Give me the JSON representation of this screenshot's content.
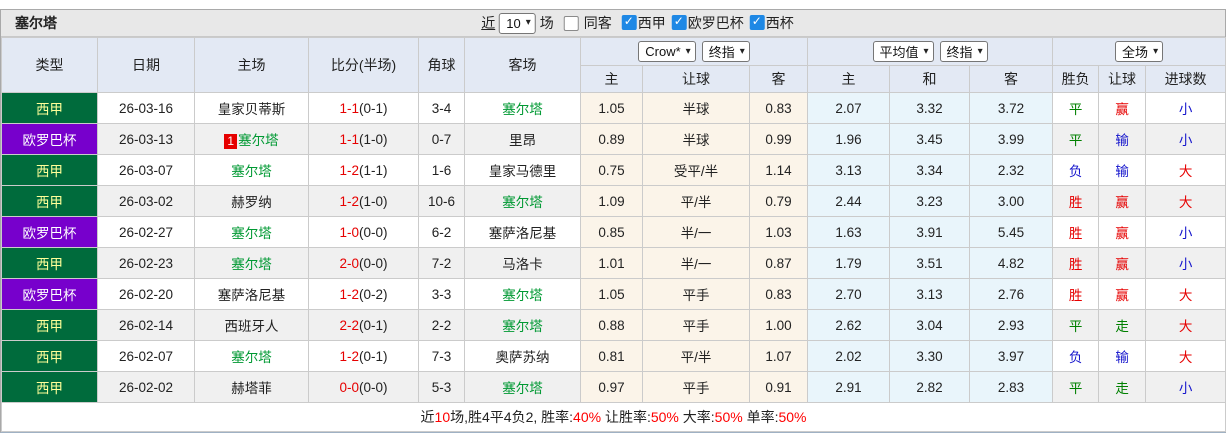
{
  "title": "塞尔塔",
  "controls": {
    "near_label": "近",
    "count_value": "10",
    "matches_label": "场",
    "same_away_label": "同客",
    "leagues": [
      {
        "label": "西甲",
        "checked": true
      },
      {
        "label": "欧罗巴杯",
        "checked": true
      },
      {
        "label": "西杯",
        "checked": true
      }
    ]
  },
  "header": {
    "static_cols": [
      "类型",
      "日期",
      "主场",
      "比分(半场)",
      "角球",
      "客场"
    ],
    "group1_selects": [
      "Crow*",
      "终指"
    ],
    "group2_selects": [
      "平均值",
      "终指"
    ],
    "group3_selects": [
      "全场"
    ],
    "sub_cols": [
      "主",
      "让球",
      "客",
      "主",
      "和",
      "客",
      "胜负",
      "让球",
      "进球数"
    ]
  },
  "league_styles": {
    "西甲": {
      "bg": "#006B3C",
      "fg": "#FFFF99"
    },
    "欧罗巴杯": {
      "bg": "#7700CC",
      "fg": "#FFFFFF"
    }
  },
  "rows": [
    {
      "type": "西甲",
      "date": "26-03-16",
      "home": "皇家贝蒂斯",
      "home_highlight": false,
      "home_rank": "",
      "score_ft": "1-1",
      "score_ht": "(0-1)",
      "corner": "3-4",
      "away": "塞尔塔",
      "away_highlight": true,
      "odds_crow": [
        "1.05",
        "半球",
        "0.83"
      ],
      "odds_avg": [
        "2.07",
        "3.32",
        "3.72"
      ],
      "results": [
        {
          "text": "平",
          "color": "green"
        },
        {
          "text": "赢",
          "color": "red"
        },
        {
          "text": "小",
          "color": "blue"
        }
      ]
    },
    {
      "type": "欧罗巴杯",
      "date": "26-03-13",
      "home": "塞尔塔",
      "home_highlight": true,
      "home_rank": "1",
      "score_ft": "1-1",
      "score_ht": "(1-0)",
      "corner": "0-7",
      "away": "里昂",
      "away_highlight": false,
      "odds_crow": [
        "0.89",
        "半球",
        "0.99"
      ],
      "odds_avg": [
        "1.96",
        "3.45",
        "3.99"
      ],
      "results": [
        {
          "text": "平",
          "color": "green"
        },
        {
          "text": "输",
          "color": "blue"
        },
        {
          "text": "小",
          "color": "blue"
        }
      ]
    },
    {
      "type": "西甲",
      "date": "26-03-07",
      "home": "塞尔塔",
      "home_highlight": true,
      "home_rank": "",
      "score_ft": "1-2",
      "score_ht": "(1-1)",
      "corner": "1-6",
      "away": "皇家马德里",
      "away_highlight": false,
      "odds_crow": [
        "0.75",
        "受平/半",
        "1.14"
      ],
      "odds_avg": [
        "3.13",
        "3.34",
        "2.32"
      ],
      "results": [
        {
          "text": "负",
          "color": "blue"
        },
        {
          "text": "输",
          "color": "blue"
        },
        {
          "text": "大",
          "color": "red"
        }
      ]
    },
    {
      "type": "西甲",
      "date": "26-03-02",
      "home": "赫罗纳",
      "home_highlight": false,
      "home_rank": "",
      "score_ft": "1-2",
      "score_ht": "(1-0)",
      "corner": "10-6",
      "away": "塞尔塔",
      "away_highlight": true,
      "odds_crow": [
        "1.09",
        "平/半",
        "0.79"
      ],
      "odds_avg": [
        "2.44",
        "3.23",
        "3.00"
      ],
      "results": [
        {
          "text": "胜",
          "color": "red"
        },
        {
          "text": "赢",
          "color": "red"
        },
        {
          "text": "大",
          "color": "red"
        }
      ]
    },
    {
      "type": "欧罗巴杯",
      "date": "26-02-27",
      "home": "塞尔塔",
      "home_highlight": true,
      "home_rank": "",
      "score_ft": "1-0",
      "score_ht": "(0-0)",
      "corner": "6-2",
      "away": "塞萨洛尼基",
      "away_highlight": false,
      "odds_crow": [
        "0.85",
        "半/一",
        "1.03"
      ],
      "odds_avg": [
        "1.63",
        "3.91",
        "5.45"
      ],
      "results": [
        {
          "text": "胜",
          "color": "red"
        },
        {
          "text": "赢",
          "color": "red"
        },
        {
          "text": "小",
          "color": "blue"
        }
      ]
    },
    {
      "type": "西甲",
      "date": "26-02-23",
      "home": "塞尔塔",
      "home_highlight": true,
      "home_rank": "",
      "score_ft": "2-0",
      "score_ht": "(0-0)",
      "corner": "7-2",
      "away": "马洛卡",
      "away_highlight": false,
      "odds_crow": [
        "1.01",
        "半/一",
        "0.87"
      ],
      "odds_avg": [
        "1.79",
        "3.51",
        "4.82"
      ],
      "results": [
        {
          "text": "胜",
          "color": "red"
        },
        {
          "text": "赢",
          "color": "red"
        },
        {
          "text": "小",
          "color": "blue"
        }
      ]
    },
    {
      "type": "欧罗巴杯",
      "date": "26-02-20",
      "home": "塞萨洛尼基",
      "home_highlight": false,
      "home_rank": "",
      "score_ft": "1-2",
      "score_ht": "(0-2)",
      "corner": "3-3",
      "away": "塞尔塔",
      "away_highlight": true,
      "odds_crow": [
        "1.05",
        "平手",
        "0.83"
      ],
      "odds_avg": [
        "2.70",
        "3.13",
        "2.76"
      ],
      "results": [
        {
          "text": "胜",
          "color": "red"
        },
        {
          "text": "赢",
          "color": "red"
        },
        {
          "text": "大",
          "color": "red"
        }
      ]
    },
    {
      "type": "西甲",
      "date": "26-02-14",
      "home": "西班牙人",
      "home_highlight": false,
      "home_rank": "",
      "score_ft": "2-2",
      "score_ht": "(0-1)",
      "corner": "2-2",
      "away": "塞尔塔",
      "away_highlight": true,
      "odds_crow": [
        "0.88",
        "平手",
        "1.00"
      ],
      "odds_avg": [
        "2.62",
        "3.04",
        "2.93"
      ],
      "results": [
        {
          "text": "平",
          "color": "green"
        },
        {
          "text": "走",
          "color": "green"
        },
        {
          "text": "大",
          "color": "red"
        }
      ]
    },
    {
      "type": "西甲",
      "date": "26-02-07",
      "home": "塞尔塔",
      "home_highlight": true,
      "home_rank": "",
      "score_ft": "1-2",
      "score_ht": "(0-1)",
      "corner": "7-3",
      "away": "奥萨苏纳",
      "away_highlight": false,
      "odds_crow": [
        "0.81",
        "平/半",
        "1.07"
      ],
      "odds_avg": [
        "2.02",
        "3.30",
        "3.97"
      ],
      "results": [
        {
          "text": "负",
          "color": "blue"
        },
        {
          "text": "输",
          "color": "blue"
        },
        {
          "text": "大",
          "color": "red"
        }
      ]
    },
    {
      "type": "西甲",
      "date": "26-02-02",
      "home": "赫塔菲",
      "home_highlight": false,
      "home_rank": "",
      "score_ft": "0-0",
      "score_ht": "(0-0)",
      "corner": "5-3",
      "away": "塞尔塔",
      "away_highlight": true,
      "odds_crow": [
        "0.97",
        "平手",
        "0.91"
      ],
      "odds_avg": [
        "2.91",
        "2.82",
        "2.83"
      ],
      "results": [
        {
          "text": "平",
          "color": "green"
        },
        {
          "text": "走",
          "color": "green"
        },
        {
          "text": "小",
          "color": "blue"
        }
      ]
    }
  ],
  "footer": {
    "parts": [
      {
        "text": "近"
      },
      {
        "text": "10",
        "red": true
      },
      {
        "text": "场,胜4平4负2, 胜率:"
      },
      {
        "text": "40%",
        "red": true
      },
      {
        "text": " 让胜率:"
      },
      {
        "text": "50%",
        "red": true
      },
      {
        "text": " 大率:"
      },
      {
        "text": "50%",
        "red": true
      },
      {
        "text": " 单率:"
      },
      {
        "text": "50%",
        "red": true
      }
    ]
  },
  "colors": {
    "red": "#E60000",
    "blue": "#1414CC",
    "result_green": "#008000",
    "team_green": "#009933",
    "checkbox_blue": "#1E88E5",
    "crow_bg": "#FBF4E9",
    "avg_bg": "#E9F5FB",
    "header_bg": "#E3E9F4",
    "titlebar_bg": "#E8E8E8",
    "alt_row_bg": "#F0F0F0"
  }
}
